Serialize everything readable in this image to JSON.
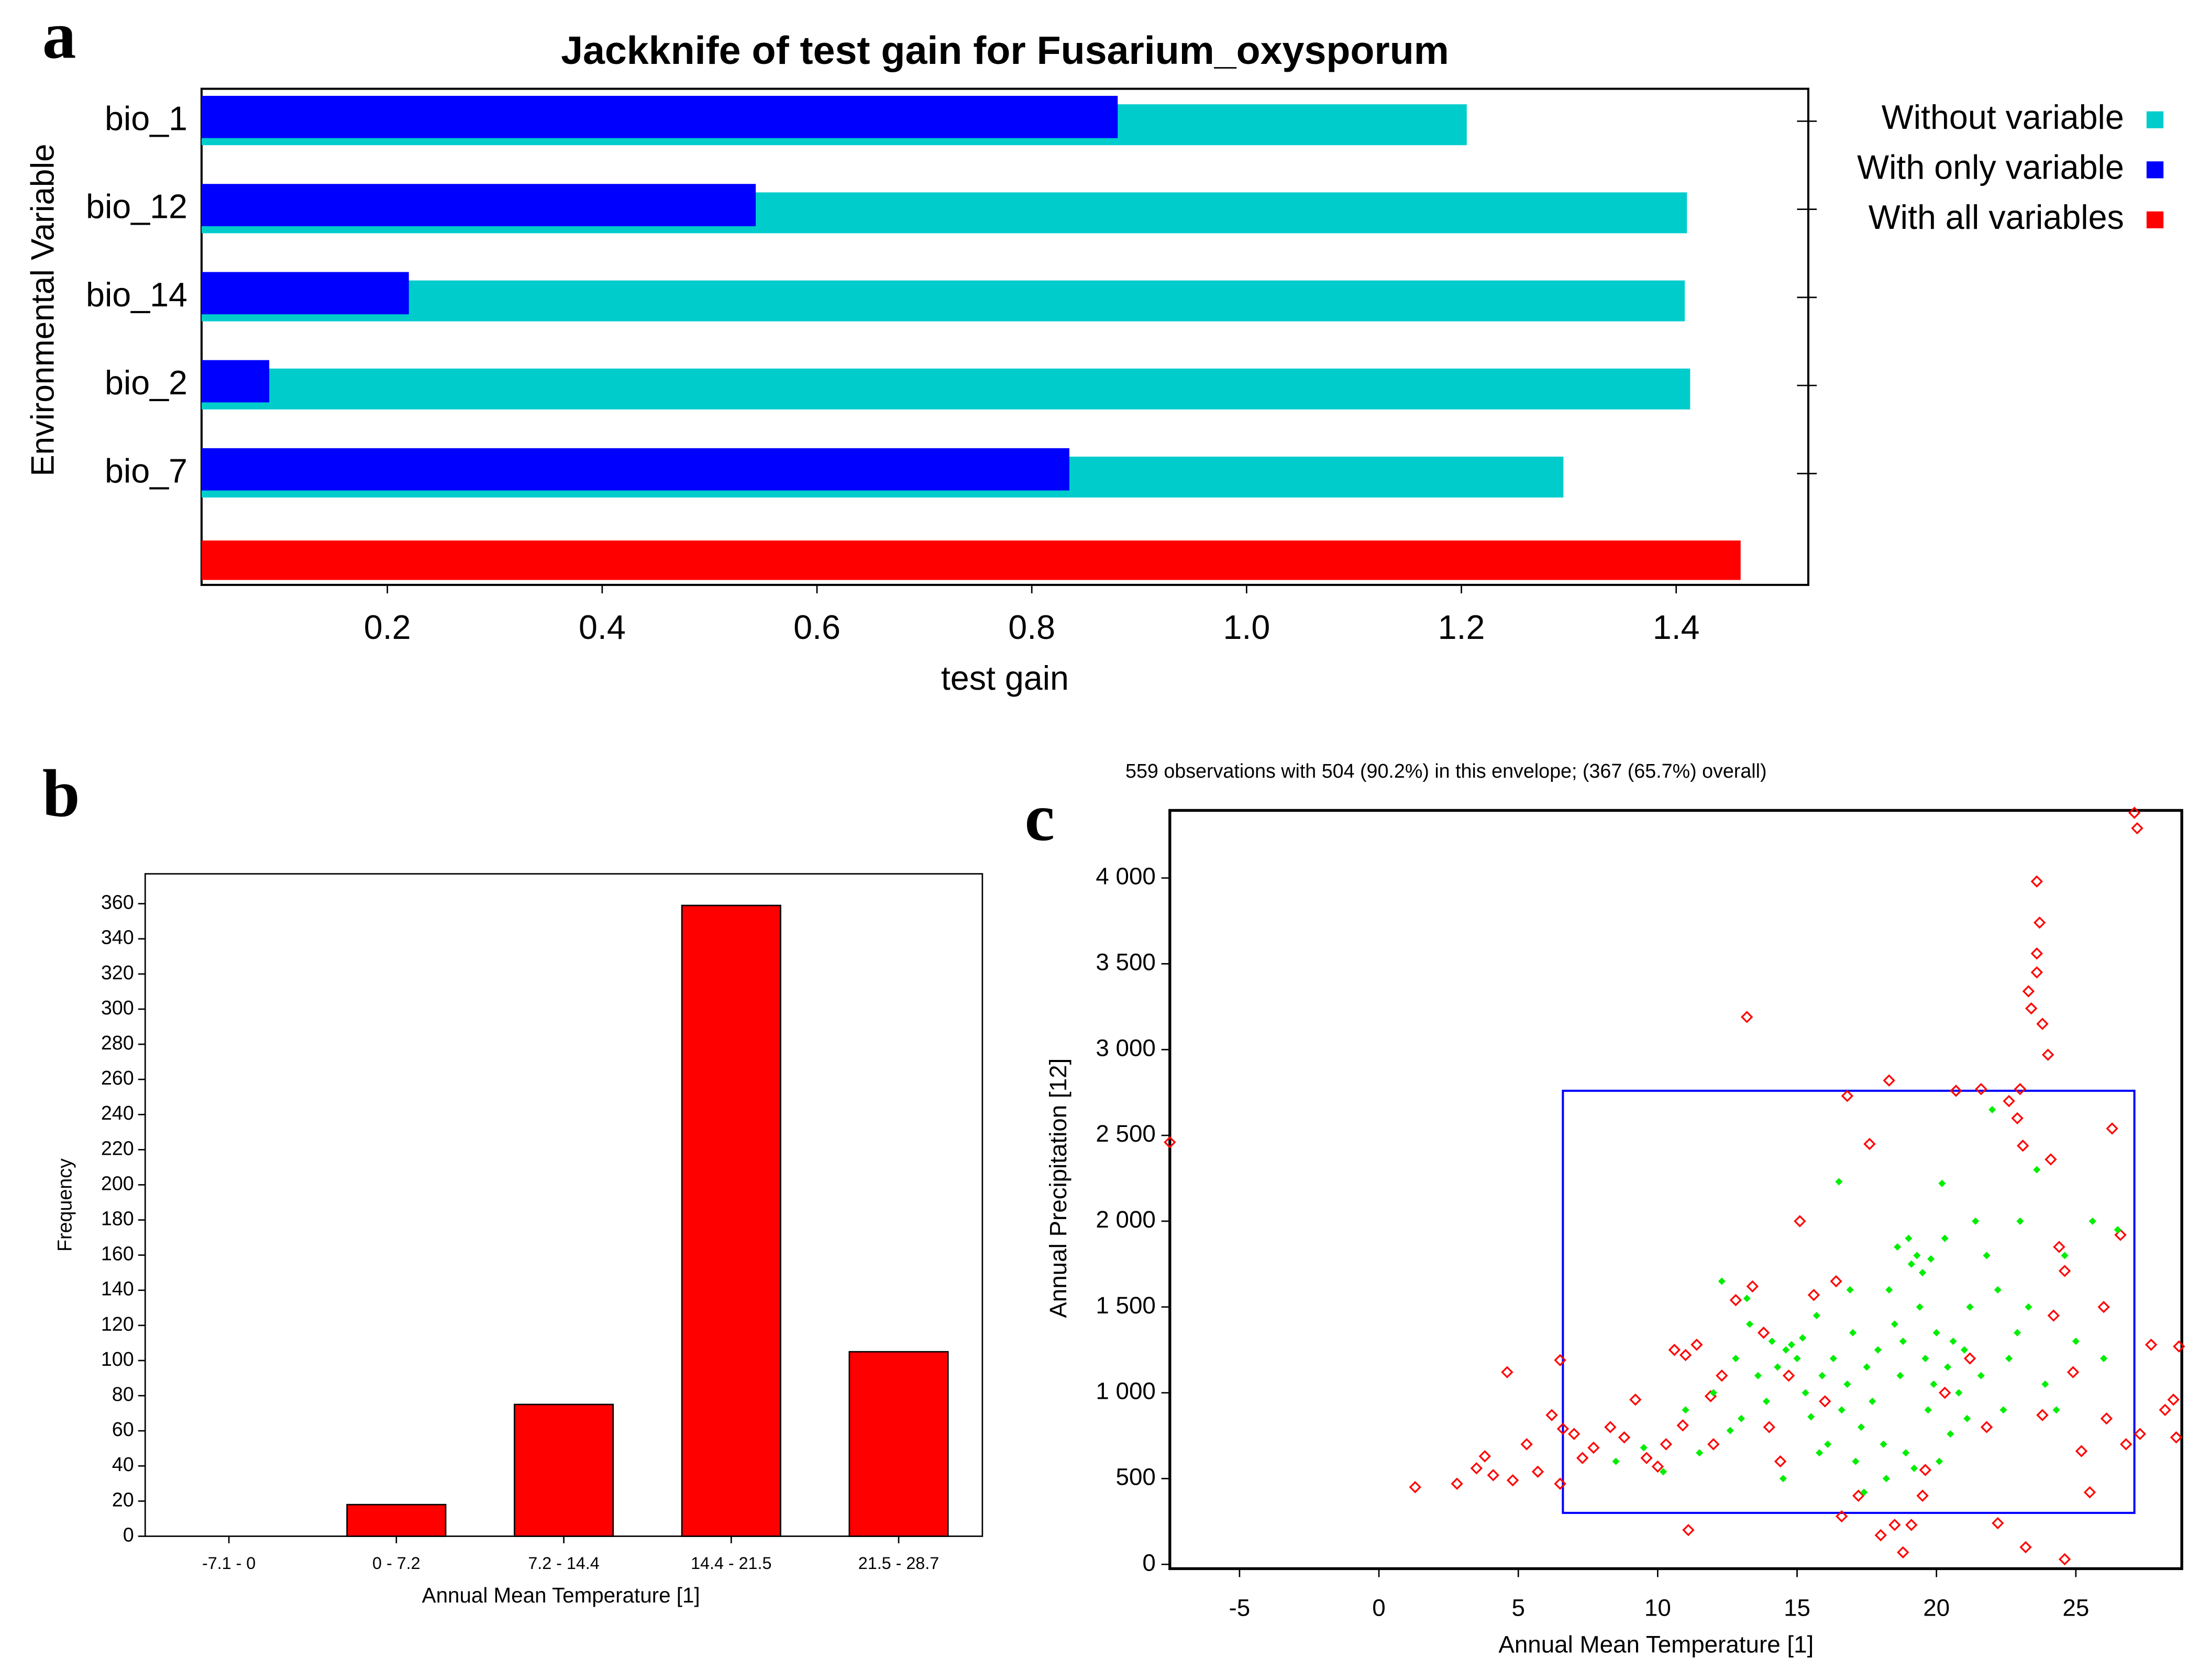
{
  "chart_data": [
    {
      "type": "bar",
      "orientation": "horizontal",
      "panel": "a",
      "title": "Jackknife of test gain for Fusarium_oxysporum",
      "x_label": "test gain",
      "y_label": "Environmental Variable",
      "categories": [
        "bio_1",
        "bio_12",
        "bio_14",
        "bio_2",
        "bio_7",
        null
      ],
      "series": [
        {
          "name": "Without variable",
          "color": "#00cccc",
          "values": [
            1.205,
            1.41,
            1.408,
            1.413,
            1.295,
            null
          ]
        },
        {
          "name": "With only variable",
          "color": "#0000ff",
          "values": [
            0.88,
            0.543,
            0.22,
            0.09,
            0.835,
            null
          ]
        },
        {
          "name": "With all variables",
          "color": "#ff0000",
          "values": [
            null,
            null,
            null,
            null,
            null,
            1.46
          ]
        }
      ],
      "xlim": [
        0.027,
        1.523
      ],
      "xticks": [
        0.2,
        0.4,
        0.6,
        0.8,
        {
          "value": 1,
          "label": "1.0"
        },
        1.2,
        1.4
      ],
      "legend": "right"
    },
    {
      "type": "bar",
      "panel": "b",
      "x_label": "Annual Mean Temperature [1]",
      "y_label": "Frequency",
      "categories": [
        "-7.1 - 0",
        "0 - 7.2",
        "7.2 - 14.4",
        "14.4 - 21.5",
        "21.5 - 28.7"
      ],
      "values": [
        0,
        18,
        75,
        359,
        105
      ],
      "color": "#ff0000",
      "ylim": [
        0,
        377
      ],
      "yticks": [
        0,
        20,
        40,
        60,
        80,
        100,
        120,
        140,
        160,
        180,
        200,
        220,
        240,
        260,
        280,
        300,
        320,
        340,
        360
      ]
    },
    {
      "type": "scatter",
      "panel": "c",
      "title": "559 observations with 504 (90.2%) in this envelope; (367 (65.7%) overall)",
      "x_label": "Annual Mean Temperature [1]",
      "y_label": "Annual Precipitation [12]",
      "xlim": [
        -7.5,
        28.8
      ],
      "xticks": [
        -5,
        0,
        5,
        10,
        15,
        20,
        25
      ],
      "ylim": [
        -25,
        4394
      ],
      "yticks": [
        0,
        500,
        {
          "value": 1000,
          "label": "1 000"
        },
        {
          "value": 1500,
          "label": "1 500"
        },
        {
          "value": 2000,
          "label": "2 000"
        },
        {
          "value": 2500,
          "label": "2 500"
        },
        {
          "value": 3000,
          "label": "3 000"
        },
        {
          "value": 3500,
          "label": "3 500"
        },
        {
          "value": 4000,
          "label": "4 000"
        }
      ],
      "envelope": {
        "x": [
          6.6,
          27.1
        ],
        "y": [
          300,
          2760
        ],
        "color": "#0000ff"
      },
      "series": [
        {
          "color": "#ff0000",
          "marker": "open-diamond",
          "x": [
            -7.5,
            1.3,
            2.8,
            3.5,
            3.8,
            4.1,
            4.6,
            4.8,
            5.3,
            5.7,
            6.2,
            6.5,
            6.6,
            6.5,
            7,
            7.3,
            7.7,
            8.3,
            8.8,
            9.2,
            9.6,
            10,
            10.3,
            10.6,
            10.9,
            11,
            11.4,
            11.9,
            11.1,
            12,
            12.3,
            12.8,
            13.2,
            13.4,
            13.8,
            14,
            14.4,
            14.7,
            15.1,
            15.6,
            16,
            16.4,
            16.6,
            16.8,
            17.2,
            17.6,
            18,
            18.3,
            18.5,
            18.8,
            19.1,
            19.5,
            19.6,
            20.3,
            20.7,
            21.2,
            21.6,
            21.8,
            22.2,
            22.6,
            22.9,
            23,
            23.1,
            23.3,
            23.4,
            23.6,
            23.7,
            23.6,
            23.6,
            23.8,
            24,
            24.1,
            24.4,
            24.6,
            24.9,
            24.6,
            23.2,
            25.2,
            26,
            26.3,
            26.6,
            27.1,
            27.2,
            27.3,
            27.7,
            28.2,
            28.5,
            28.6,
            28.7,
            26.8,
            26.1,
            25.5,
            24.2,
            23.8
          ],
          "y": [
            2460,
            450,
            470,
            560,
            630,
            520,
            1120,
            490,
            700,
            540,
            870,
            1190,
            790,
            470,
            760,
            620,
            680,
            800,
            740,
            960,
            620,
            570,
            700,
            1250,
            810,
            1220,
            1280,
            980,
            200,
            700,
            1100,
            1540,
            3190,
            1620,
            1350,
            800,
            600,
            1100,
            2000,
            1570,
            950,
            1650,
            280,
            2730,
            400,
            2450,
            170,
            2820,
            230,
            70,
            230,
            400,
            550,
            1000,
            2760,
            1200,
            2770,
            800,
            240,
            2700,
            2600,
            2770,
            2440,
            3340,
            3240,
            3980,
            3740,
            3560,
            3450,
            3150,
            2970,
            2360,
            1850,
            1710,
            1120,
            30,
            100,
            660,
            1500,
            2540,
            1920,
            4380,
            4290,
            760,
            1280,
            900,
            960,
            740,
            1270,
            700,
            850,
            420,
            1450,
            870
          ]
        },
        {
          "color": "#00ee00",
          "marker": "dot",
          "x": [
            8.5,
            9.5,
            10.2,
            11,
            11.5,
            12,
            12.3,
            12.8,
            13,
            13.3,
            13.6,
            13.9,
            14.1,
            14.3,
            14.6,
            14.8,
            15,
            15.2,
            15.3,
            15.5,
            15.7,
            15.9,
            16.1,
            16.3,
            16.5,
            16.6,
            16.8,
            17,
            17.1,
            17.3,
            17.5,
            17.7,
            17.9,
            18.1,
            18.3,
            18.5,
            18.6,
            18.7,
            18.9,
            19,
            19.1,
            19.3,
            19.4,
            19.5,
            19.6,
            19.7,
            19.8,
            19.9,
            20,
            20.1,
            20.2,
            20.4,
            20.6,
            20.8,
            21,
            21.2,
            21.4,
            21.6,
            21.8,
            22,
            22.2,
            22.4,
            22.6,
            23,
            23.3,
            23.6,
            23.9,
            24.3,
            24.6,
            25,
            25.6,
            26,
            26.5,
            14.5,
            15.8,
            17.4,
            18.2,
            19.2,
            20.5,
            13.2,
            12.6,
            16.9,
            18.8,
            20.3,
            21.1,
            22.9
          ],
          "y": [
            600,
            680,
            540,
            900,
            650,
            1000,
            1650,
            1200,
            850,
            1400,
            1100,
            950,
            1300,
            1150,
            1250,
            1280,
            1200,
            1320,
            1000,
            860,
            1450,
            1100,
            700,
            1200,
            2230,
            900,
            1050,
            1350,
            600,
            800,
            1150,
            950,
            1250,
            700,
            1600,
            1400,
            1850,
            1100,
            650,
            1900,
            1750,
            1800,
            1500,
            1700,
            1200,
            900,
            1780,
            1050,
            1350,
            600,
            2220,
            1150,
            1300,
            1000,
            1250,
            1500,
            2000,
            1100,
            1800,
            2650,
            1600,
            900,
            1200,
            2000,
            1500,
            2300,
            1050,
            900,
            1800,
            1300,
            2000,
            1200,
            1950,
            500,
            650,
            420,
            500,
            560,
            760,
            1550,
            780,
            1600,
            1300,
            1900,
            850,
            1350
          ]
        }
      ]
    }
  ]
}
